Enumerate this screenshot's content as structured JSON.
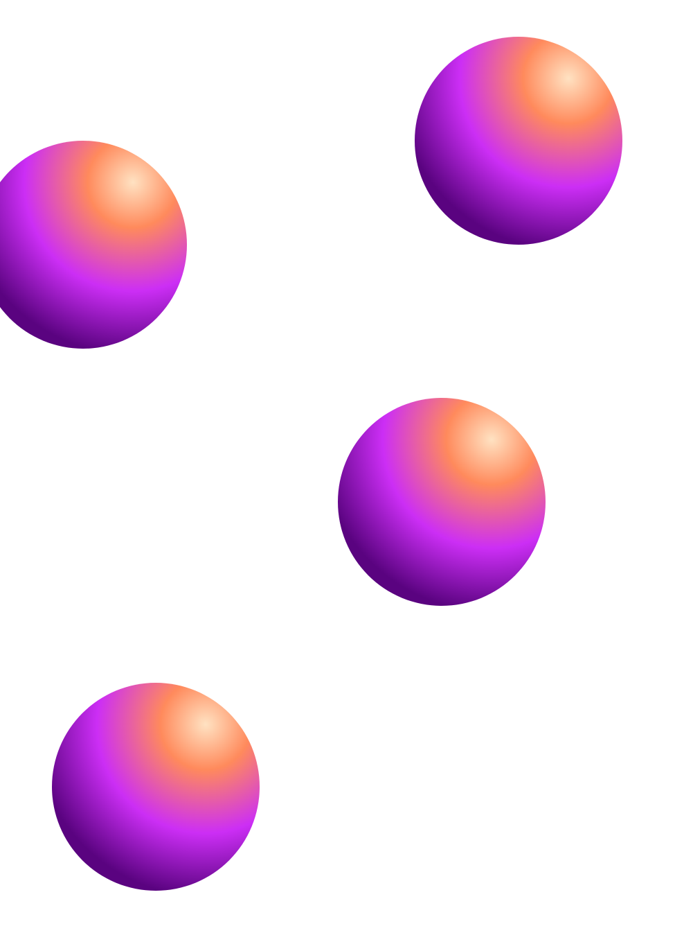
{
  "background_color": "#ffffff",
  "sphere_gradient": {
    "highlight": "#ffe2c2",
    "orange": "#ff8a5c",
    "magenta": "#cc2ef5",
    "deep_purple": "#5a0380"
  },
  "spheres": [
    {
      "name": "orb-top-right"
    },
    {
      "name": "orb-left"
    },
    {
      "name": "orb-middle-right"
    },
    {
      "name": "orb-bottom-left"
    }
  ]
}
